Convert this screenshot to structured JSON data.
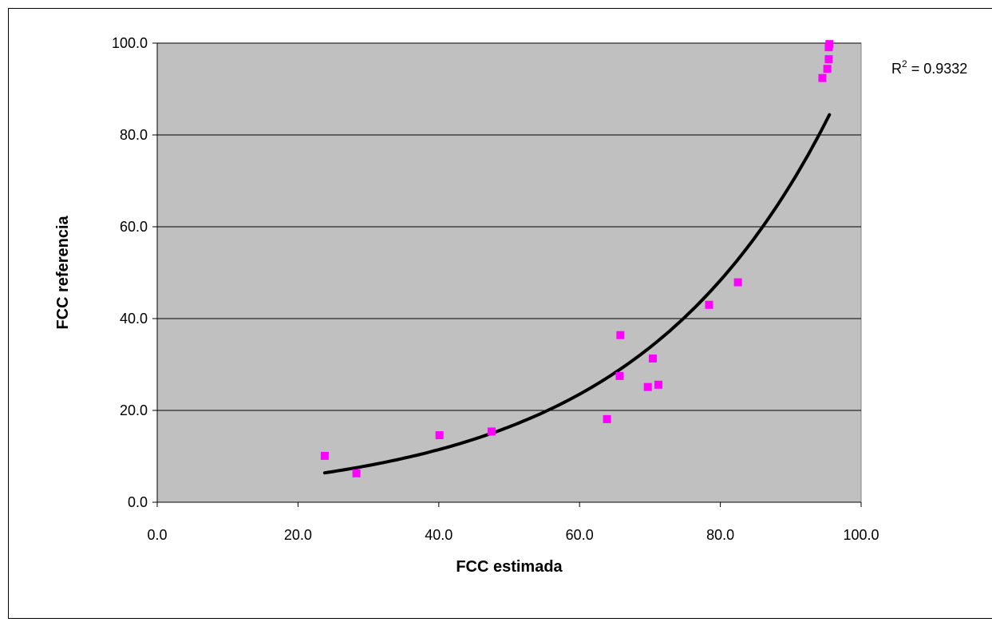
{
  "chart_data": {
    "type": "scatter",
    "title": "",
    "xlabel": "FCC estimada",
    "ylabel": "FCC referencia",
    "xlim": [
      0,
      100
    ],
    "ylim": [
      0,
      100
    ],
    "x_ticks": [
      "0.0",
      "20.0",
      "40.0",
      "60.0",
      "80.0",
      "100.0"
    ],
    "y_ticks": [
      "0.0",
      "20.0",
      "40.0",
      "60.0",
      "80.0",
      "100.0"
    ],
    "grid": "horizontal",
    "colors": {
      "plot_background": "#c0c0c0",
      "points": "#ff00ff",
      "trendline": "#000000"
    },
    "series": [
      {
        "points": [
          {
            "x": 23.8,
            "y": 10.1
          },
          {
            "x": 28.3,
            "y": 6.3
          },
          {
            "x": 40.1,
            "y": 14.6
          },
          {
            "x": 47.5,
            "y": 15.4
          },
          {
            "x": 63.9,
            "y": 18.1
          },
          {
            "x": 65.7,
            "y": 27.5
          },
          {
            "x": 65.8,
            "y": 36.4
          },
          {
            "x": 69.7,
            "y": 25.1
          },
          {
            "x": 70.4,
            "y": 31.3
          },
          {
            "x": 71.2,
            "y": 25.6
          },
          {
            "x": 78.4,
            "y": 43.0
          },
          {
            "x": 82.5,
            "y": 47.9
          },
          {
            "x": 94.5,
            "y": 92.4
          },
          {
            "x": 95.2,
            "y": 94.4
          },
          {
            "x": 95.4,
            "y": 96.5
          },
          {
            "x": 95.4,
            "y": 99.1
          },
          {
            "x": 95.5,
            "y": 99.8
          }
        ]
      }
    ],
    "trendline": {
      "type": "exponential",
      "x_range": [
        23.8,
        95.5
      ],
      "y_start": 6.4,
      "y_end": 84.4
    },
    "annotations": {
      "r2_prefix": "R",
      "r2_sup": "2",
      "r2_value": " = 0.9332"
    }
  }
}
